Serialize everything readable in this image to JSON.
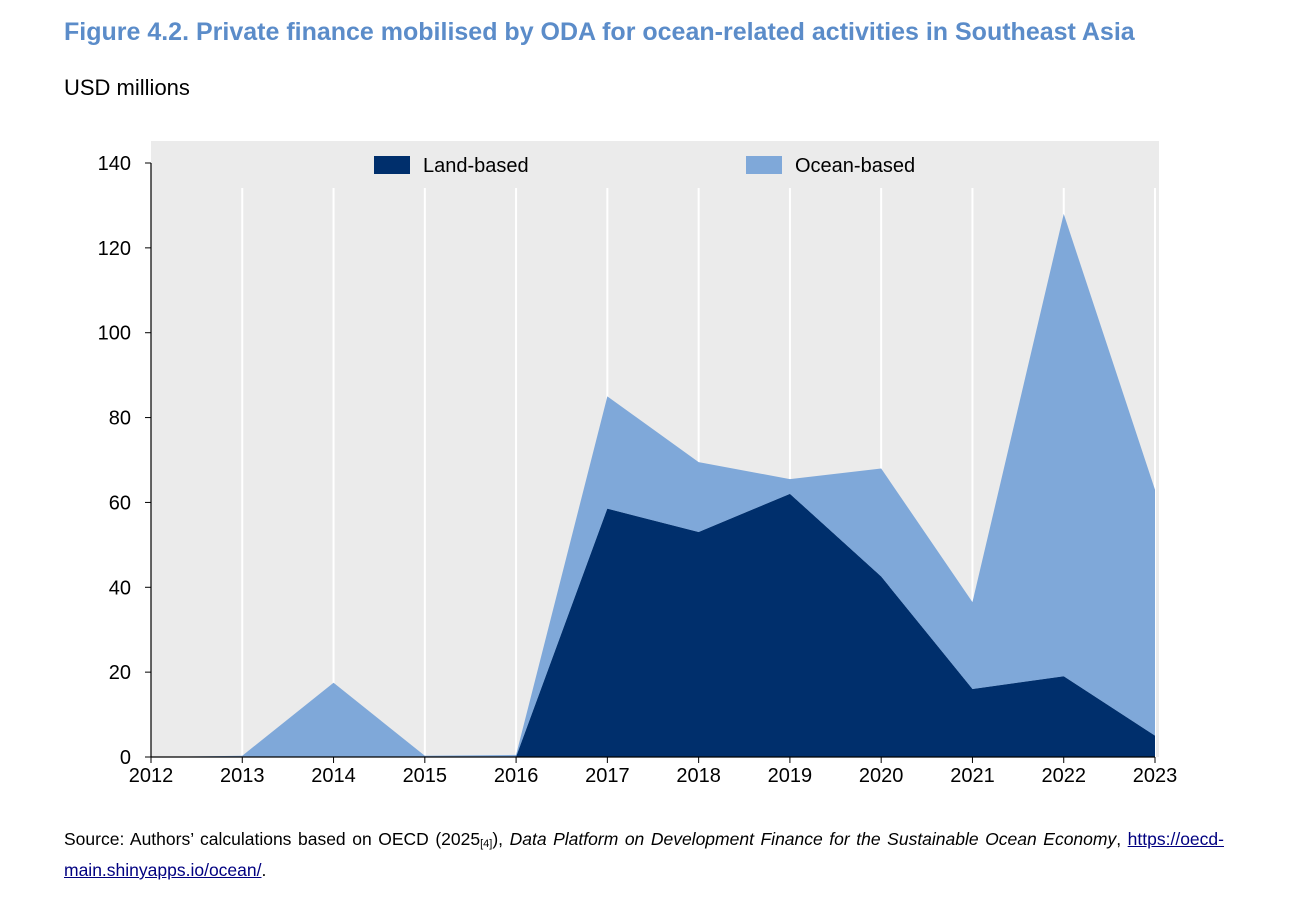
{
  "figure": {
    "title": "Figure 4.2. Private finance mobilised by ODA for ocean-related activities in Southeast Asia",
    "subtitle": "USD millions"
  },
  "chart_data": {
    "type": "area",
    "stacked": true,
    "x": [
      "2012",
      "2013",
      "2014",
      "2015",
      "2016",
      "2017",
      "2018",
      "2019",
      "2020",
      "2021",
      "2022",
      "2023"
    ],
    "series": [
      {
        "name": "Land-based",
        "color": "#002f6c",
        "values": [
          0,
          0,
          0,
          0,
          0,
          58.5,
          53,
          62,
          42.5,
          16,
          19,
          5
        ]
      },
      {
        "name": "Ocean-based",
        "color": "#7fa8d9",
        "values": [
          0,
          0.3,
          17.5,
          0.3,
          0.5,
          26.5,
          16.5,
          3.5,
          25.5,
          20.5,
          109,
          58
        ]
      }
    ],
    "yticks": [
      "0",
      "20",
      "40",
      "60",
      "80",
      "100",
      "120",
      "140"
    ],
    "ylim": [
      0,
      140
    ],
    "grid": "vertical",
    "plot_background": "#ebebeb",
    "legend_position": "top"
  },
  "source": {
    "prefix": "Source: Authors’ calculations based on OECD (2025",
    "ref": "[4]",
    "mid": "), ",
    "italic": "Data Platform on Development Finance for the Sustainable Ocean Economy",
    "comma": ",",
    "link": "https://oecd-main.shinyapps.io/ocean/",
    "end": "."
  }
}
